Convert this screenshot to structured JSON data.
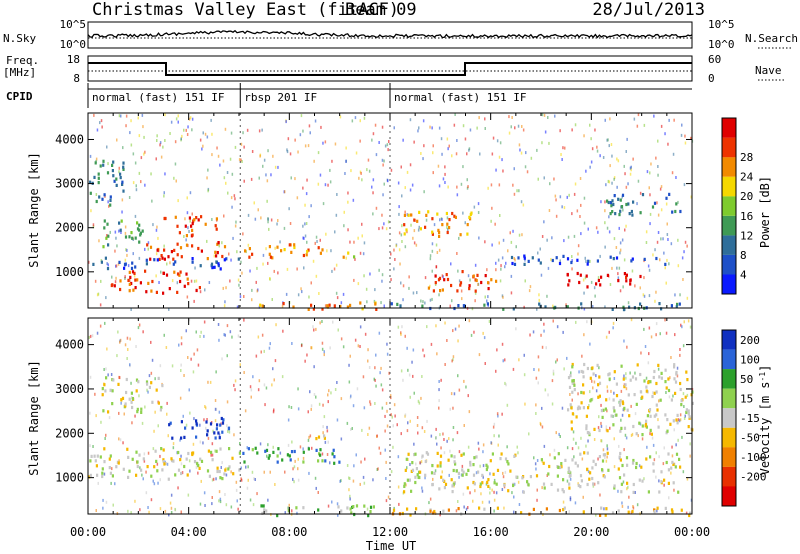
{
  "header": {
    "station": "Christmas Valley East (fitACF)",
    "beam": "Beam 09",
    "date": "28/Jul/2013"
  },
  "side_labels": {
    "nsky": "N.Sky",
    "nsearch": "N.Search",
    "freq_line1": "Freq.",
    "freq_line2": "[MHz]",
    "nave": "Nave",
    "cpid": "CPID"
  },
  "noise_axis": {
    "left_ticks": [
      "10^5",
      "10^0"
    ],
    "right_ticks": [
      "10^5",
      "10^0"
    ]
  },
  "freq_axis": {
    "left_ticks": [
      "18",
      "8"
    ],
    "right_ticks": [
      "60",
      "0"
    ]
  },
  "cpid_segments": [
    {
      "label": "normal (fast) 151 IF",
      "start": 0.0,
      "end": 6.05
    },
    {
      "label": "rbsp 201 IF",
      "start": 6.05,
      "end": 12.0
    },
    {
      "label": "normal (fast) 151 IF",
      "start": 12.0,
      "end": 24.0
    }
  ],
  "chart_data": [
    {
      "type": "heatmap",
      "name": "power",
      "ylabel": "Slant Range [km]",
      "colorbar_label": "Power [dB]",
      "ylim": [
        180,
        4600
      ],
      "yticks": [
        1000,
        2000,
        3000,
        4000
      ],
      "color_levels": [
        {
          "label": "",
          "color": "#0a1aff"
        },
        {
          "label": "4",
          "color": "#1e50c8"
        },
        {
          "label": "8",
          "color": "#2f6e9a"
        },
        {
          "label": "12",
          "color": "#3f9a55"
        },
        {
          "label": "16",
          "color": "#7ecb2e"
        },
        {
          "label": "20",
          "color": "#f5d800"
        },
        {
          "label": "24",
          "color": "#f28a00"
        },
        {
          "label": "28",
          "color": "#ee3300"
        },
        {
          "label": "",
          "color": "#e00000"
        }
      ],
      "features": [
        {
          "t": [
            0.0,
            1.4
          ],
          "r": [
            2500,
            3600
          ],
          "level": 2
        },
        {
          "t": [
            0.5,
            2.2
          ],
          "r": [
            1600,
            2200
          ],
          "level": 3
        },
        {
          "t": [
            0.8,
            4.5
          ],
          "r": [
            550,
            1050
          ],
          "level": 7
        },
        {
          "t": [
            2.0,
            5.5
          ],
          "r": [
            1300,
            1700
          ],
          "level": 7
        },
        {
          "t": [
            3.0,
            5.2
          ],
          "r": [
            1850,
            2300
          ],
          "level": 7
        },
        {
          "t": [
            0.0,
            6.0
          ],
          "r": [
            1100,
            1350
          ],
          "level": 1
        },
        {
          "t": [
            6.2,
            9.6
          ],
          "r": [
            1350,
            1650
          ],
          "level": 6
        },
        {
          "t": [
            10.0,
            10.7
          ],
          "r": [
            1300,
            1500
          ],
          "level": 5
        },
        {
          "t": [
            6.0,
            12.0
          ],
          "r": [
            180,
            330
          ],
          "level": 6
        },
        {
          "t": [
            12.5,
            15.2
          ],
          "r": [
            1800,
            2400
          ],
          "level": 6
        },
        {
          "t": [
            13.5,
            16.5
          ],
          "r": [
            600,
            1050
          ],
          "level": 7
        },
        {
          "t": [
            16.5,
            23.0
          ],
          "r": [
            1200,
            1400
          ],
          "level": 1
        },
        {
          "t": [
            19.0,
            22.0
          ],
          "r": [
            650,
            1000
          ],
          "level": 8
        },
        {
          "t": [
            20.5,
            23.5
          ],
          "r": [
            2300,
            2800
          ],
          "level": 2
        },
        {
          "t": [
            12.0,
            24.0
          ],
          "r": [
            180,
            320
          ],
          "level": 2
        }
      ]
    },
    {
      "type": "heatmap",
      "name": "velocity",
      "ylabel": "Slant Range [km]",
      "xlabel": "Time UT",
      "colorbar_label": "Velocity [m s-1]",
      "ylim": [
        180,
        4600
      ],
      "yticks": [
        1000,
        2000,
        3000,
        4000
      ],
      "xticks": [
        "00:00",
        "04:00",
        "08:00",
        "12:00",
        "16:00",
        "20:00",
        "00:00"
      ],
      "color_levels": [
        {
          "label": "200",
          "color": "#1030c0"
        },
        {
          "label": "100",
          "color": "#2a64d8"
        },
        {
          "label": "50",
          "color": "#2ca02c"
        },
        {
          "label": "15",
          "color": "#8fd14f"
        },
        {
          "label": "-15",
          "color": "#c8c8c8"
        },
        {
          "label": "-50",
          "color": "#f5b800"
        },
        {
          "label": "-100",
          "color": "#f08000"
        },
        {
          "label": "-200",
          "color": "#e83000"
        },
        {
          "label": "",
          "color": "#e00000"
        }
      ],
      "features": [
        {
          "t": [
            0.0,
            6.0
          ],
          "r": [
            1000,
            1700
          ],
          "level": 4
        },
        {
          "t": [
            0.5,
            3.0
          ],
          "r": [
            2500,
            3300
          ],
          "level": 4
        },
        {
          "t": [
            3.0,
            5.6
          ],
          "r": [
            1900,
            2400
          ],
          "level": 0
        },
        {
          "t": [
            6.0,
            10.5
          ],
          "r": [
            1350,
            1700
          ],
          "level": 2
        },
        {
          "t": [
            8.5,
            9.5
          ],
          "r": [
            1850,
            2050
          ],
          "level": 5
        },
        {
          "t": [
            6.5,
            11.5
          ],
          "r": [
            180,
            400
          ],
          "level": 3
        },
        {
          "t": [
            12.0,
            24.0
          ],
          "r": [
            180,
            350
          ],
          "level": 5
        },
        {
          "t": [
            12.5,
            23.5
          ],
          "r": [
            700,
            1600
          ],
          "level": 4
        },
        {
          "t": [
            19.0,
            24.0
          ],
          "r": [
            2000,
            3600
          ],
          "level": 4
        }
      ]
    }
  ]
}
